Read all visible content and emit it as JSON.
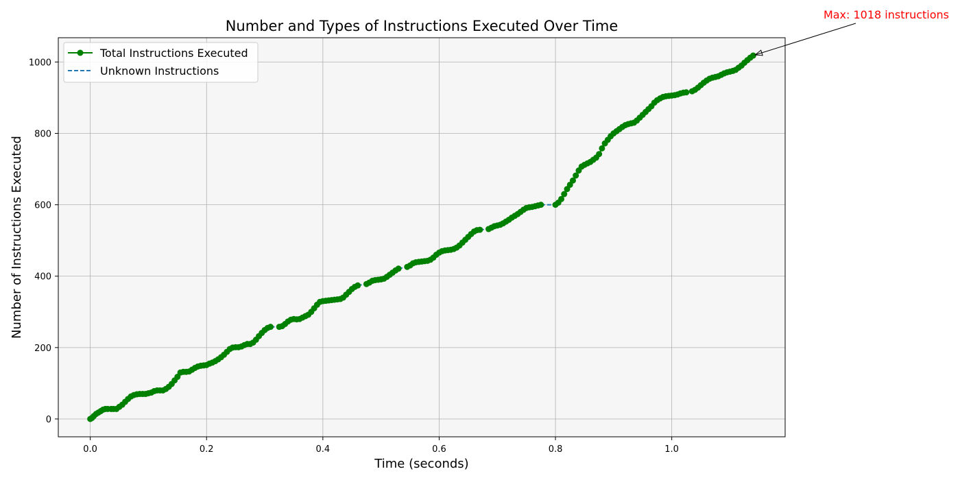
{
  "chart_data": {
    "type": "line",
    "title": "Number and Types of Instructions Executed Over Time",
    "xlabel": "Time (seconds)",
    "ylabel": "Number of Instructions Executed",
    "xlim": [
      -0.055,
      1.195
    ],
    "ylim": [
      -50,
      1068
    ],
    "xticks": [
      0.0,
      0.2,
      0.4,
      0.6,
      0.8,
      1.0
    ],
    "xtick_labels": [
      "0.0",
      "0.2",
      "0.4",
      "0.6",
      "0.8",
      "1.0"
    ],
    "yticks": [
      0,
      200,
      400,
      600,
      800,
      1000
    ],
    "ytick_labels": [
      "0",
      "200",
      "400",
      "600",
      "800",
      "1000"
    ],
    "grid": true,
    "legend_position": "top-left",
    "background_color": "#f6f6f6",
    "series": [
      {
        "name": "Total Instructions Executed",
        "color": "#008000",
        "style": "solid-with-markers",
        "segments": [
          {
            "x": [
              0.0,
              0.003,
              0.006,
              0.01,
              0.014,
              0.018,
              0.022,
              0.026,
              0.03
            ],
            "y": [
              0,
              3,
              8,
              14,
              18,
              22,
              26,
              28,
              28
            ]
          },
          {
            "x": [
              0.036,
              0.04,
              0.045,
              0.05,
              0.055,
              0.06,
              0.065,
              0.07,
              0.075,
              0.08,
              0.085,
              0.09,
              0.095,
              0.1,
              0.105,
              0.11,
              0.115,
              0.12,
              0.125,
              0.13,
              0.135,
              0.14,
              0.145,
              0.15,
              0.155,
              0.16,
              0.165,
              0.17,
              0.175,
              0.18,
              0.185,
              0.19,
              0.195,
              0.2,
              0.205,
              0.21,
              0.215,
              0.22,
              0.225,
              0.23,
              0.235,
              0.24,
              0.245,
              0.25,
              0.255,
              0.26,
              0.265,
              0.27,
              0.275,
              0.28,
              0.285,
              0.29,
              0.295,
              0.3,
              0.305,
              0.31
            ],
            "y": [
              28,
              28,
              28,
              34,
              40,
              48,
              56,
              63,
              67,
              69,
              70,
              70,
              70,
              72,
              74,
              78,
              80,
              80,
              80,
              84,
              90,
              98,
              108,
              118,
              130,
              132,
              132,
              133,
              138,
              143,
              147,
              149,
              150,
              151,
              155,
              158,
              162,
              167,
              173,
              180,
              188,
              196,
              200,
              201,
              201,
              203,
              207,
              210,
              210,
              214,
              222,
              232,
              241,
              249,
              255,
              258
            ]
          },
          {
            "x": [
              0.325,
              0.33,
              0.335,
              0.34,
              0.345,
              0.35,
              0.355,
              0.36,
              0.365,
              0.37,
              0.375,
              0.38,
              0.385,
              0.39,
              0.395,
              0.4,
              0.405,
              0.41,
              0.415,
              0.42,
              0.425,
              0.43,
              0.435,
              0.44,
              0.445,
              0.45,
              0.455,
              0.46
            ],
            "y": [
              258,
              260,
              266,
              273,
              278,
              280,
              279,
              280,
              284,
              288,
              292,
              300,
              310,
              320,
              328,
              330,
              331,
              332,
              333,
              334,
              335,
              336,
              340,
              348,
              356,
              364,
              370,
              374
            ]
          },
          {
            "x": [
              0.475,
              0.48,
              0.485,
              0.49,
              0.495,
              0.5,
              0.505,
              0.51,
              0.515,
              0.52,
              0.525,
              0.53
            ],
            "y": [
              378,
              382,
              387,
              389,
              390,
              391,
              393,
              398,
              404,
              410,
              416,
              421
            ]
          },
          {
            "x": [
              0.545,
              0.55,
              0.555,
              0.56,
              0.565,
              0.57,
              0.575,
              0.58,
              0.585,
              0.59,
              0.595,
              0.6,
              0.605,
              0.61,
              0.615,
              0.62,
              0.625,
              0.63,
              0.635,
              0.64,
              0.645,
              0.65,
              0.655,
              0.66,
              0.665,
              0.67
            ],
            "y": [
              426,
              430,
              436,
              439,
              440,
              441,
              442,
              443,
              446,
              452,
              460,
              466,
              470,
              472,
              473,
              474,
              476,
              480,
              486,
              494,
              502,
              510,
              518,
              525,
              529,
              530
            ]
          },
          {
            "x": [
              0.685,
              0.69,
              0.695,
              0.7,
              0.705,
              0.71,
              0.715,
              0.72,
              0.725,
              0.73,
              0.735,
              0.74,
              0.745,
              0.75,
              0.755,
              0.76,
              0.765,
              0.77,
              0.775
            ],
            "y": [
              532,
              536,
              540,
              542,
              544,
              548,
              553,
              558,
              564,
              569,
              574,
              580,
              586,
              591,
              593,
              594,
              596,
              598,
              600
            ]
          },
          {
            "x": [
              0.8,
              0.805,
              0.81,
              0.815,
              0.82,
              0.825,
              0.83,
              0.835,
              0.84,
              0.845,
              0.85,
              0.855,
              0.86,
              0.865,
              0.87,
              0.875,
              0.88,
              0.885,
              0.89,
              0.895,
              0.9,
              0.905,
              0.91,
              0.915,
              0.92,
              0.925,
              0.93,
              0.935,
              0.94,
              0.945,
              0.95,
              0.955,
              0.96,
              0.965,
              0.97,
              0.975,
              0.98,
              0.985,
              0.99,
              0.995,
              1.0,
              1.005,
              1.01,
              1.015,
              1.02,
              1.025
            ],
            "y": [
              600,
              606,
              616,
              630,
              644,
              656,
              668,
              682,
              696,
              707,
              712,
              716,
              720,
              726,
              732,
              742,
              758,
              772,
              782,
              792,
              800,
              806,
              812,
              818,
              823,
              826,
              828,
              830,
              836,
              844,
              852,
              860,
              868,
              876,
              886,
              893,
              898,
              902,
              904,
              905,
              906,
              907,
              909,
              912,
              914,
              915
            ]
          },
          {
            "x": [
              1.035,
              1.04,
              1.045,
              1.05,
              1.055,
              1.06,
              1.065,
              1.07,
              1.075,
              1.08,
              1.085,
              1.09,
              1.095,
              1.1,
              1.105,
              1.11,
              1.115,
              1.12,
              1.125,
              1.13,
              1.135,
              1.14
            ],
            "y": [
              918,
              922,
              928,
              935,
              942,
              948,
              953,
              956,
              958,
              960,
              964,
              968,
              971,
              973,
              975,
              978,
              984,
              990,
              998,
              1005,
              1012,
              1018
            ]
          }
        ]
      },
      {
        "name": "Unknown Instructions",
        "color": "#1f77b4",
        "style": "dashed",
        "segments": [
          {
            "x": [
              0.03,
              0.036
            ],
            "y": [
              28,
              28
            ]
          },
          {
            "x": [
              0.31,
              0.325
            ],
            "y": [
              258,
              258
            ]
          },
          {
            "x": [
              0.46,
              0.475
            ],
            "y": [
              374,
              378
            ]
          },
          {
            "x": [
              0.53,
              0.545
            ],
            "y": [
              421,
              426
            ]
          },
          {
            "x": [
              0.67,
              0.685
            ],
            "y": [
              530,
              532
            ]
          },
          {
            "x": [
              0.775,
              0.8
            ],
            "y": [
              600,
              600
            ]
          },
          {
            "x": [
              1.025,
              1.035
            ],
            "y": [
              915,
              918
            ]
          }
        ]
      }
    ],
    "annotation": {
      "text": "Max: 1018 instructions",
      "x": 1.14,
      "y": 1018,
      "color": "#ff0000"
    }
  }
}
